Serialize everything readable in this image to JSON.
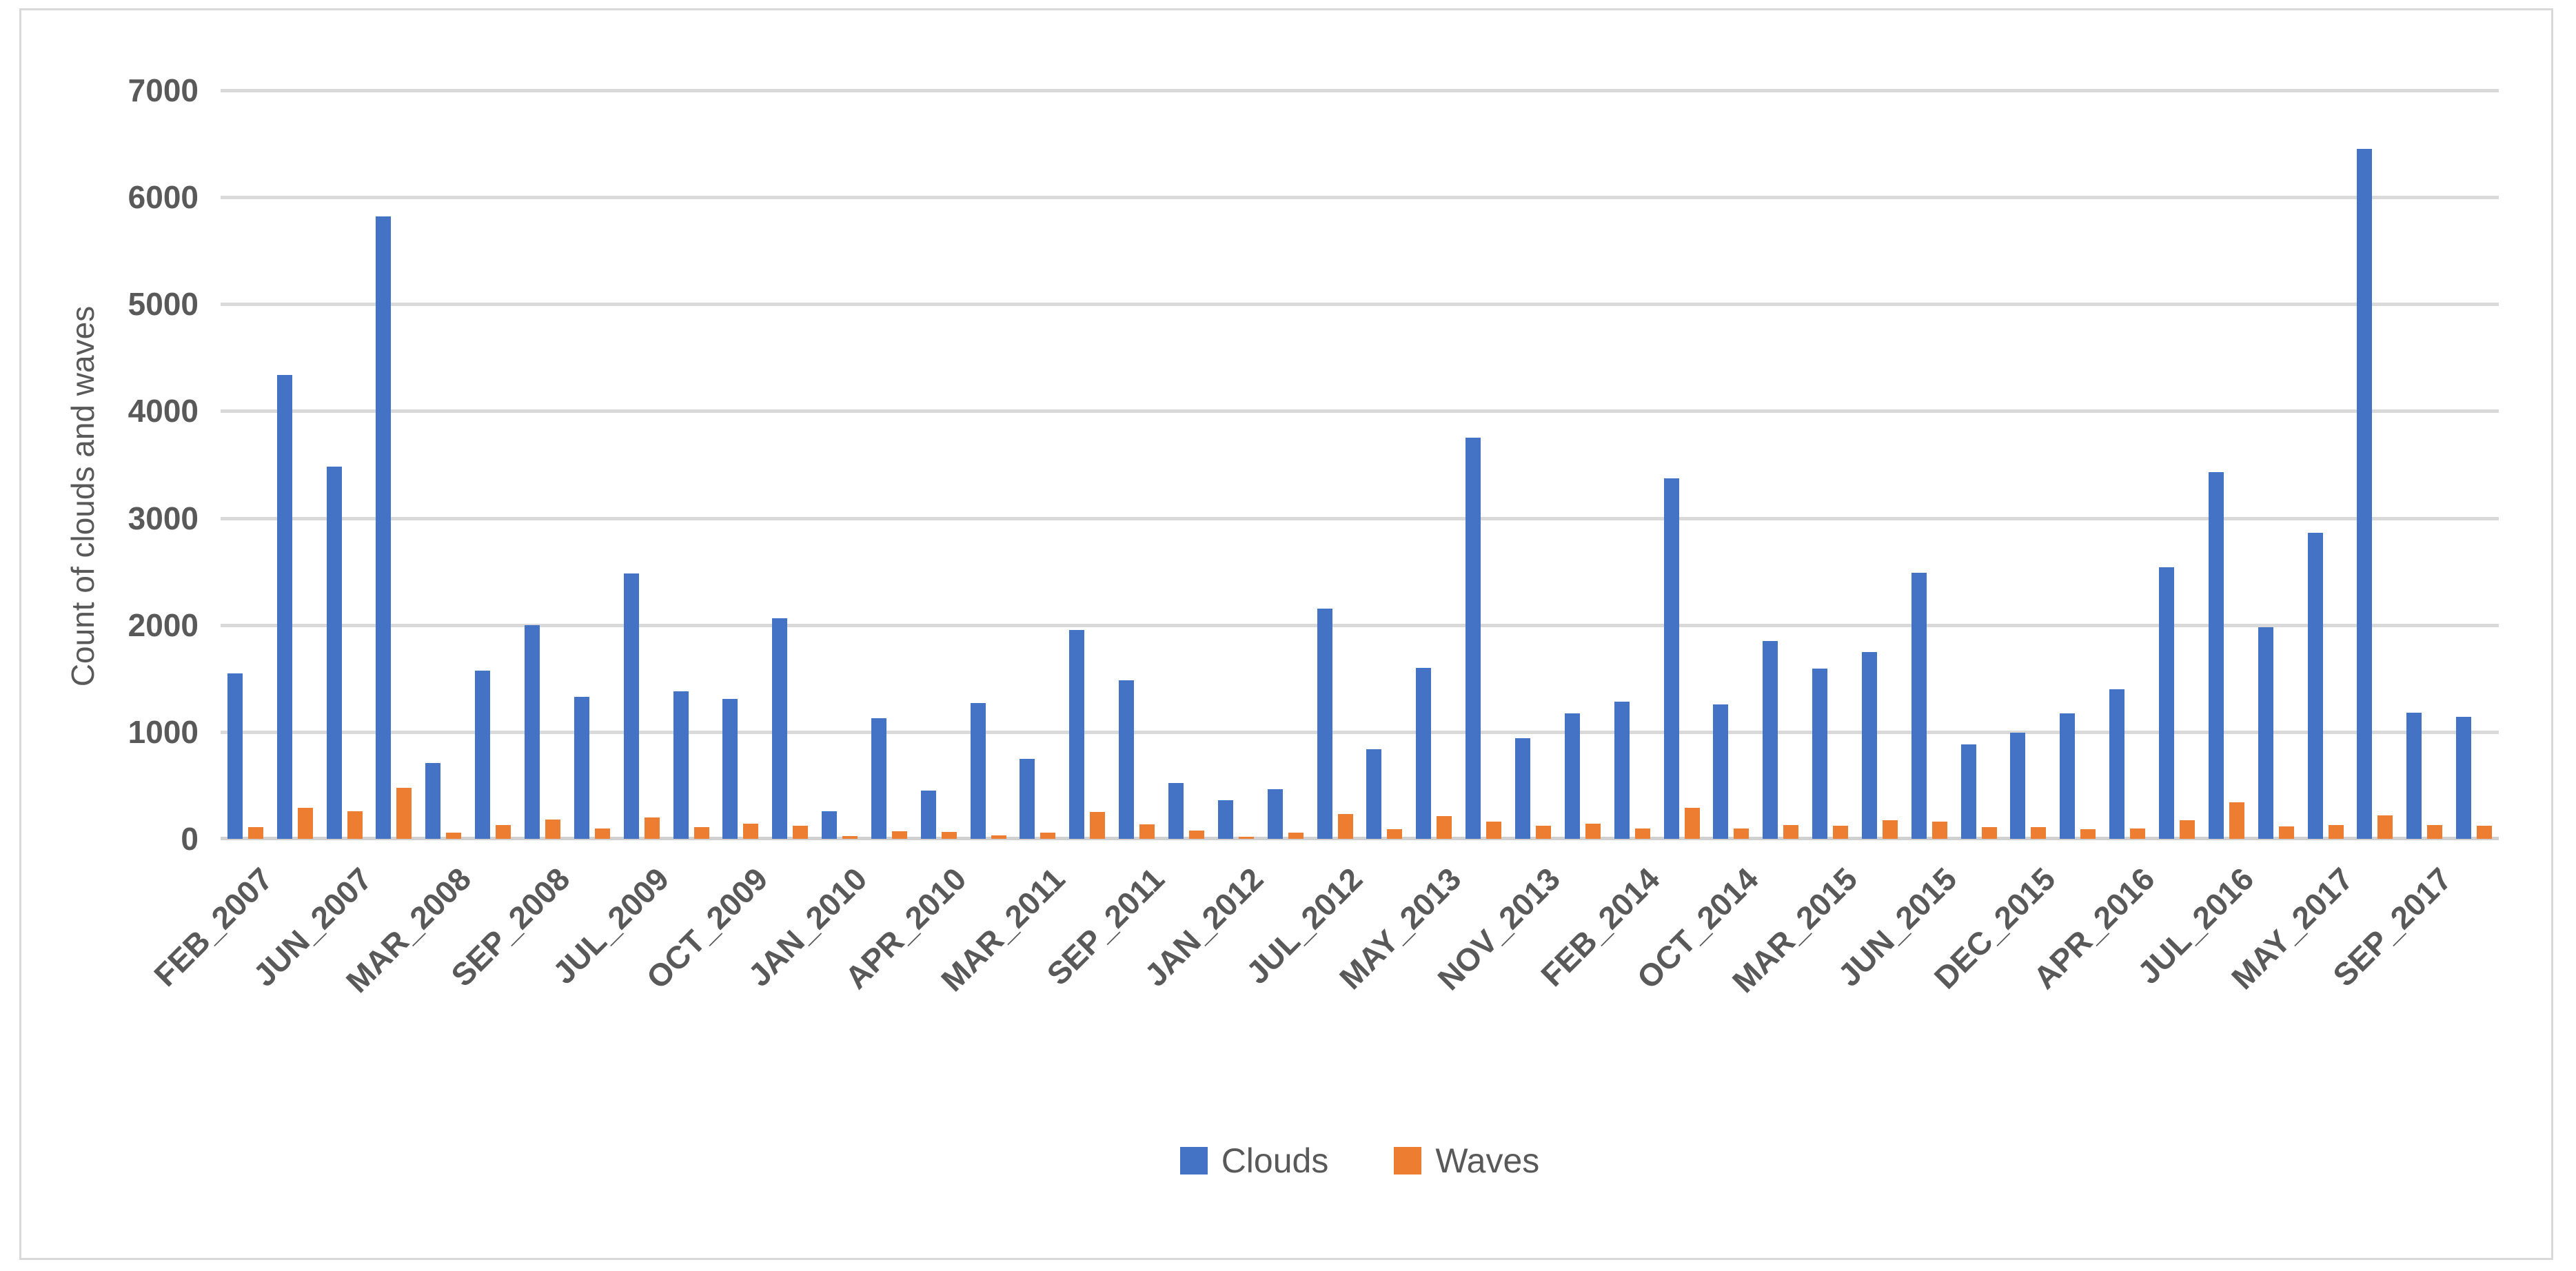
{
  "chart_data": {
    "type": "bar",
    "title": "",
    "xlabel": "",
    "ylabel": "Count of clouds and waves",
    "ylim": [
      0,
      7000
    ],
    "ytick_step": 1000,
    "yticks": [
      0,
      1000,
      2000,
      3000,
      4000,
      5000,
      6000,
      7000
    ],
    "grid": true,
    "legend_position": "bottom",
    "plot_colors": {
      "gridline": "#d9d9d9",
      "axis_text": "#595959",
      "background": "#ffffff",
      "frame_border": "#d9d9d9"
    },
    "categories": [
      "FEB_2007",
      "",
      "JUN_2007",
      "",
      "MAR_2008",
      "",
      "SEP_2008",
      "",
      "JUL_2009",
      "",
      "OCT_2009",
      "",
      "JAN_2010",
      "",
      "APR_2010",
      "",
      "MAR_2011",
      "",
      "SEP_2011",
      "",
      "JAN_2012",
      "",
      "JUL_2012",
      "",
      "MAY_2013",
      "",
      "NOV_2013",
      "",
      "FEB_2014",
      "",
      "OCT_2014",
      "",
      "MAR_2015",
      "",
      "JUN_2015",
      "",
      "DEC_2015",
      "",
      "APR_2016",
      "",
      "JUL_2016",
      "",
      "MAY_2017",
      "",
      "SEP_2017",
      ""
    ],
    "series": [
      {
        "name": "Clouds",
        "color": "#4472C4",
        "values": [
          1550,
          4340,
          3480,
          5820,
          710,
          1570,
          2000,
          1330,
          2480,
          1380,
          1310,
          2060,
          260,
          1130,
          450,
          1270,
          750,
          1950,
          1480,
          520,
          360,
          465,
          2150,
          840,
          1600,
          3750,
          940,
          1170,
          1280,
          3370,
          1260,
          1850,
          1590,
          1750,
          2490,
          880,
          995,
          1170,
          1400,
          2540,
          3430,
          1980,
          2860,
          6450,
          1180,
          1140
        ]
      },
      {
        "name": "Waves",
        "color": "#ED7D31",
        "values": [
          110,
          290,
          260,
          480,
          55,
          130,
          180,
          95,
          200,
          110,
          140,
          120,
          25,
          70,
          65,
          35,
          55,
          250,
          135,
          80,
          20,
          60,
          230,
          90,
          210,
          160,
          120,
          140,
          100,
          290,
          95,
          130,
          125,
          175,
          160,
          110,
          110,
          90,
          100,
          175,
          340,
          115,
          130,
          220,
          130,
          125
        ]
      }
    ]
  },
  "legend": {
    "clouds_label": "Clouds",
    "waves_label": "Waves"
  }
}
